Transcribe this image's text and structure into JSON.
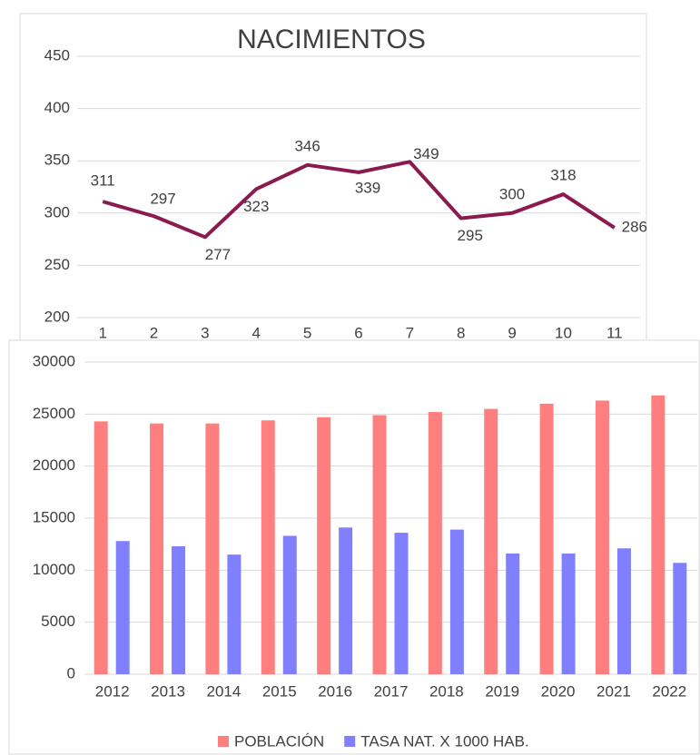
{
  "chart_data": [
    {
      "type": "line",
      "title": "NACIMIENTOS",
      "categories": [
        1,
        2,
        3,
        4,
        5,
        6,
        7,
        8,
        9,
        10,
        11
      ],
      "values": [
        311,
        297,
        277,
        323,
        346,
        339,
        349,
        295,
        300,
        318,
        286
      ],
      "color": "#8b1a4f",
      "ylim": [
        200,
        450
      ],
      "yticks": [
        200,
        250,
        300,
        350,
        400,
        450
      ],
      "grid": true
    },
    {
      "type": "bar",
      "categories": [
        "2012",
        "2013",
        "2014",
        "2015",
        "2016",
        "2017",
        "2018",
        "2019",
        "2020",
        "2021",
        "2022"
      ],
      "series": [
        {
          "name": "POBLACIÓN",
          "color": "#ff7f7f",
          "values": [
            24300,
            24100,
            24100,
            24400,
            24700,
            24900,
            25200,
            25500,
            26000,
            26300,
            26800
          ]
        },
        {
          "name": "TASA NAT. X 1000 HAB.",
          "color": "#7f7fff",
          "values": [
            12800,
            12300,
            11500,
            13300,
            14100,
            13600,
            13900,
            11600,
            11600,
            12100,
            10700
          ]
        }
      ],
      "ylim": [
        0,
        30000
      ],
      "yticks": [
        0,
        5000,
        10000,
        15000,
        20000,
        25000,
        30000
      ],
      "grid": true,
      "legend": "bottom"
    }
  ]
}
